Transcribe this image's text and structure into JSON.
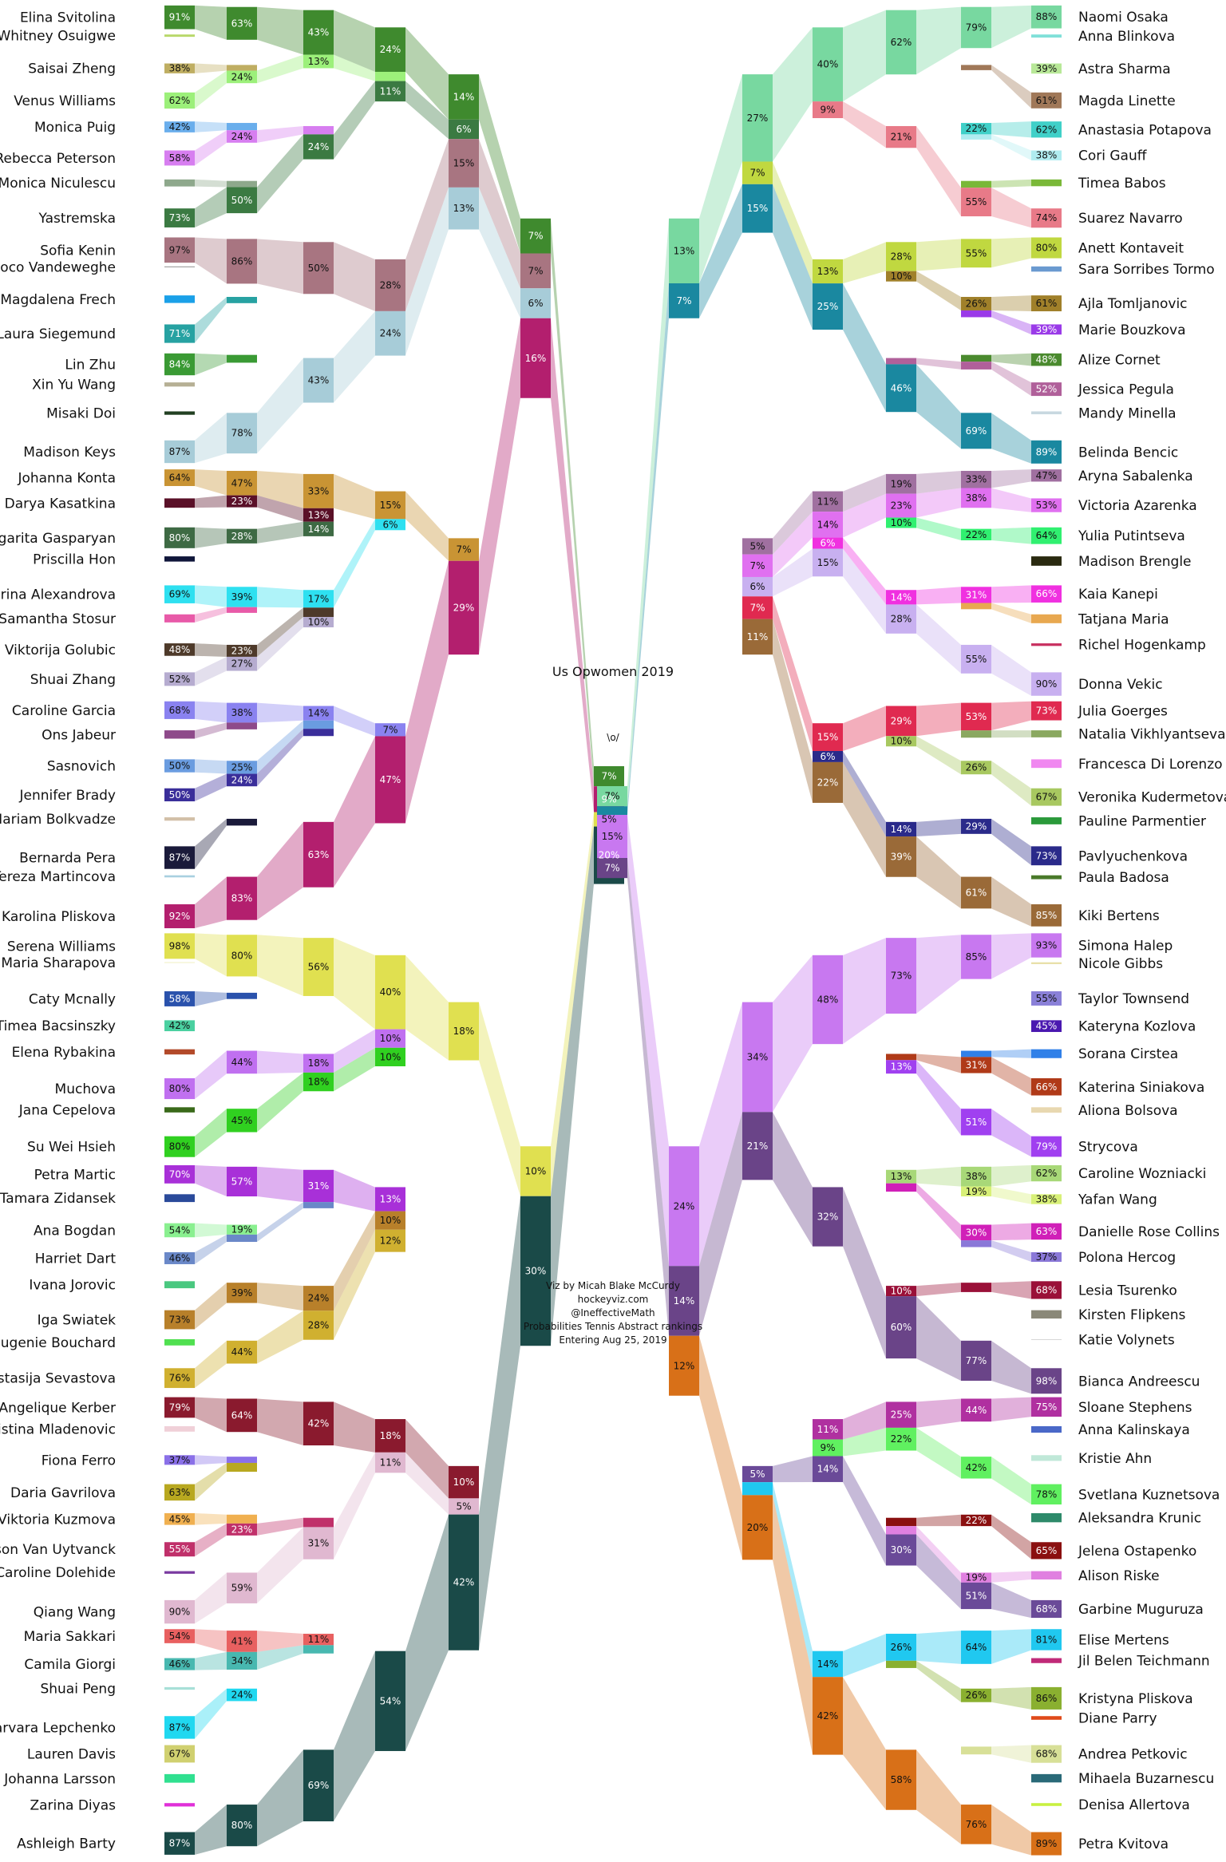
{
  "chart_data": {
    "type": "sankey",
    "title": "Us Opwomen 2019",
    "champion_label": "\\o/",
    "credits": [
      "Viz by Micah Blake McCurdy",
      "hockeyviz.com",
      "@IneffectiveMath",
      "Probabilities Tennis Abstract rankings",
      "Entering Aug 25, 2019"
    ],
    "rounds_shown_as_percent_of_reaching_next_round": true,
    "left_half": [
      {
        "name": "Elina Svitolina",
        "color": "#3f8a2e",
        "r1": 91,
        "r2": 63,
        "r3": 43,
        "r4": 24,
        "qf": 14,
        "sf": 7,
        "final": 7
      },
      {
        "name": "Whitney Osuigwe",
        "color": "#b8d86a",
        "r1": 9
      },
      {
        "name": "Saisai Zheng",
        "color": "#bfae62",
        "r1": 38,
        "r2": 11
      },
      {
        "name": "Venus Williams",
        "color": "#9cf07a",
        "r1": 62,
        "r2": 24,
        "r3": 13,
        "r4": 5
      },
      {
        "name": "Monica Puig",
        "color": "#6aaeec",
        "r1": 42,
        "r2": 14
      },
      {
        "name": "Rebecca Peterson",
        "color": "#d77ef0",
        "r1": 58,
        "r2": 24,
        "r3": 8
      },
      {
        "name": "Monica Niculescu",
        "color": "#8ea88c",
        "r1": 27,
        "r2": 12
      },
      {
        "name": "Yastremska",
        "color": "#3b7a42",
        "r1": 73,
        "r2": 50,
        "r3": 24,
        "r4": 11,
        "qf": 6
      },
      {
        "name": "Sofia Kenin",
        "color": "#a87581",
        "r1": 97,
        "r2": 86,
        "r3": 50,
        "r4": 28,
        "qf": 15,
        "sf": 7
      },
      {
        "name": "Coco Vandeweghe",
        "color": "#8e8e8e",
        "r1": 3
      },
      {
        "name": "Magdalena Frech",
        "color": "#1aa0e8",
        "r1": 29
      },
      {
        "name": "Laura Siegemund",
        "color": "#27a2a2",
        "r1": 71,
        "r2": 12
      },
      {
        "name": "Lin Zhu",
        "color": "#3a9a34",
        "r1": 84,
        "r2": 15
      },
      {
        "name": "Xin Yu Wang",
        "color": "#b6b094",
        "r1": 16
      },
      {
        "name": "Misaki Doi",
        "color": "#224022",
        "r1": 13
      },
      {
        "name": "Madison Keys",
        "color": "#a7ccd8",
        "r1": 87,
        "r2": 78,
        "r3": 43,
        "r4": 24,
        "qf": 13,
        "sf": 6
      },
      {
        "name": "Johanna Konta",
        "color": "#c99434",
        "r1": 64,
        "r2": 47,
        "r3": 33,
        "r4": 15,
        "qf": 7
      },
      {
        "name": "Darya Kasatkina",
        "color": "#5a1028",
        "r1": 36,
        "r2": 23,
        "r3": 13
      },
      {
        "name": "Margarita Gasparyan",
        "color": "#3e6a44",
        "r1": 80,
        "r2": 28,
        "r3": 14
      },
      {
        "name": "Priscilla Hon",
        "color": "#10163a",
        "r1": 20
      },
      {
        "name": "Ekaterina Alexandrova",
        "color": "#2ee0f0",
        "r1": 69,
        "r2": 39,
        "r3": 17,
        "r4": 6
      },
      {
        "name": "Samantha Stosur",
        "color": "#e85aa8",
        "r1": 31,
        "r2": 11
      },
      {
        "name": "Viktorija Golubic",
        "color": "#4e3a2a",
        "r1": 48,
        "r2": 23,
        "r3": 9
      },
      {
        "name": "Shuai Zhang",
        "color": "#b6acd0",
        "r1": 52,
        "r2": 27,
        "r3": 10
      },
      {
        "name": "Caroline Garcia",
        "color": "#8a82f0",
        "r1": 68,
        "r2": 38,
        "r3": 14,
        "r4": 7
      },
      {
        "name": "Ons Jabeur",
        "color": "#8e4a8a",
        "r1": 32,
        "r2": 13
      },
      {
        "name": "Sasnovich",
        "color": "#6a9ce0",
        "r1": 50,
        "r2": 25,
        "r3": 8
      },
      {
        "name": "Jennifer Brady",
        "color": "#3a2e9a",
        "r1": 50,
        "r2": 24,
        "r3": 7
      },
      {
        "name": "Mariam Bolkvadze",
        "color": "#d2c0a8",
        "r1": 13
      },
      {
        "name": "Bernarda Pera",
        "color": "#1a1a3a",
        "r1": 87,
        "r2": 13
      },
      {
        "name": "Tereza Martincova",
        "color": "#a8d0e0",
        "r1": 8
      },
      {
        "name": "Karolina Pliskova",
        "color": "#b31f6e",
        "r1": 92,
        "r2": 83,
        "r3": 63,
        "r4": 47,
        "qf": 29,
        "sf": 16,
        "final": 9
      },
      {
        "name": "Serena Williams",
        "color": "#e0e050",
        "r1": 98,
        "r2": 80,
        "r3": 56,
        "r4": 40,
        "qf": 18,
        "sf": 10,
        "final": 5
      },
      {
        "name": "Maria Sharapova",
        "color": "#e8e8a0",
        "r1": 2
      },
      {
        "name": "Caty Mcnally",
        "color": "#2a52ac",
        "r1": 58,
        "r2": 12
      },
      {
        "name": "Timea Bacsinszky",
        "color": "#4ad0a0",
        "r1": 42
      },
      {
        "name": "Elena Rybakina",
        "color": "#b34a2a",
        "r1": 20
      },
      {
        "name": "Muchova",
        "color": "#c070f0",
        "r1": 80,
        "r2": 44,
        "r3": 18,
        "r4": 10
      },
      {
        "name": "Jana Cepelova",
        "color": "#3a6a1a",
        "r1": 20
      },
      {
        "name": "Su Wei Hsieh",
        "color": "#30d020",
        "r1": 80,
        "r2": 45,
        "r3": 18,
        "r4": 10
      },
      {
        "name": "Petra Martic",
        "color": "#a830d8",
        "r1": 70,
        "r2": 57,
        "r3": 31,
        "r4": 13
      },
      {
        "name": "Tamara Zidansek",
        "color": "#2a4a9a",
        "r1": 30
      },
      {
        "name": "Ana Bogdan",
        "color": "#8af090",
        "r1": 54,
        "r2": 19
      },
      {
        "name": "Harriet Dart",
        "color": "#6a88c8",
        "r1": 46,
        "r2": 14,
        "r3": 6
      },
      {
        "name": "Ivana Jorovic",
        "color": "#4ac880",
        "r1": 27
      },
      {
        "name": "Iga Swiatek",
        "color": "#b8802a",
        "r1": 73,
        "r2": 39,
        "r3": 24,
        "r4": 10
      },
      {
        "name": "Eugenie Bouchard",
        "color": "#50e050",
        "r1": 24
      },
      {
        "name": "Anastasija Sevastova",
        "color": "#d0b030",
        "r1": 76,
        "r2": 44,
        "r3": 28,
        "r4": 12
      },
      {
        "name": "Angelique Kerber",
        "color": "#8a1a2e",
        "r1": 79,
        "r2": 64,
        "r3": 42,
        "r4": 18,
        "qf": 10
      },
      {
        "name": "Kristina Mladenovic",
        "color": "#f0d0d8",
        "r1": 21
      },
      {
        "name": "Fiona Ferro",
        "color": "#8a70e8",
        "r1": 37,
        "r2": 12
      },
      {
        "name": "Daria Gavrilova",
        "color": "#b8a820",
        "r1": 63,
        "r2": 17
      },
      {
        "name": "Viktoria Kuzmova",
        "color": "#f0b050",
        "r1": 45,
        "r2": 17
      },
      {
        "name": "Alison Van Uytvanck",
        "color": "#c0306a",
        "r1": 55,
        "r2": 23,
        "r3": 9
      },
      {
        "name": "Caroline Dolehide",
        "color": "#7a3aa0",
        "r1": 10
      },
      {
        "name": "Qiang Wang",
        "color": "#e0b8d0",
        "r1": 90,
        "r2": 59,
        "r3": 31,
        "r4": 11,
        "qf": 5
      },
      {
        "name": "Maria Sakkari",
        "color": "#e86060",
        "r1": 54,
        "r2": 41,
        "r3": 11
      },
      {
        "name": "Camila Giorgi",
        "color": "#48b8b0",
        "r1": 46,
        "r2": 34,
        "r3": 8
      },
      {
        "name": "Shuai Peng",
        "color": "#a8e0d8",
        "r1": 10
      },
      {
        "name": "Varvara Lepchenko",
        "color": "#20d8f0",
        "r1": 87,
        "r2": 24
      },
      {
        "name": "Lauren Davis",
        "color": "#d0d070",
        "r1": 67
      },
      {
        "name": "Johanna Larsson",
        "color": "#30e090",
        "r1": 33
      },
      {
        "name": "Zarina Diyas",
        "color": "#e030d8",
        "r1": 13
      },
      {
        "name": "Ashleigh Barty",
        "color": "#1a4a48",
        "r1": 87,
        "r2": 80,
        "r3": 69,
        "r4": 54,
        "qf": 42,
        "sf": 30,
        "final": 20
      }
    ],
    "right_half": [
      {
        "name": "Naomi Osaka",
        "color": "#78d8a0",
        "r1": 88,
        "r2": 79,
        "r3": 62,
        "r4": 40,
        "qf": 27,
        "sf": 13,
        "final": 7
      },
      {
        "name": "Anna Blinkova",
        "color": "#80e0d8",
        "r1": 12
      },
      {
        "name": "Astra Sharma",
        "color": "#b8e898",
        "r1": 39
      },
      {
        "name": "Magda Linette",
        "color": "#a07858",
        "r1": 61,
        "r2": 10
      },
      {
        "name": "Anastasia Potapova",
        "color": "#40d0c8",
        "r1": 62,
        "r2": 22
      },
      {
        "name": "Cori Gauff",
        "color": "#b0ecf0",
        "r1": 38,
        "r2": 10
      },
      {
        "name": "Timea Babos",
        "color": "#7ab838",
        "r1": 26,
        "r2": 13
      },
      {
        "name": "Suarez Navarro",
        "color": "#e87a88",
        "r1": 74,
        "r2": 55,
        "r3": 21,
        "r4": 9
      },
      {
        "name": "Anett Kontaveit",
        "color": "#c0d840",
        "r1": 80,
        "r2": 55,
        "r3": 28,
        "r4": 13,
        "qf": 7
      },
      {
        "name": "Sara Sorribes Tormo",
        "color": "#6a9ad0",
        "r1": 20
      },
      {
        "name": "Ajla Tomljanovic",
        "color": "#a0802a",
        "r1": 61,
        "r2": 26,
        "r3": 10
      },
      {
        "name": "Marie Bouzkova",
        "color": "#9a3ae8",
        "r1": 39,
        "r2": 13
      },
      {
        "name": "Alize Cornet",
        "color": "#4a8a2e",
        "r1": 48,
        "r2": 13
      },
      {
        "name": "Jessica Pegula",
        "color": "#b0609a",
        "r1": 52,
        "r2": 15,
        "r3": 6
      },
      {
        "name": "Mandy Minella",
        "color": "#c8d8e0",
        "r1": 11
      },
      {
        "name": "Belinda Bencic",
        "color": "#1a88a0",
        "r1": 89,
        "r2": 69,
        "r3": 46,
        "r4": 25,
        "qf": 15,
        "sf": 7,
        "final": 3
      },
      {
        "name": "Aryna Sabalenka",
        "color": "#a070a0",
        "r1": 47,
        "r2": 33,
        "r3": 19,
        "r4": 11,
        "qf": 5
      },
      {
        "name": "Victoria Azarenka",
        "color": "#e070f0",
        "r1": 53,
        "r2": 38,
        "r3": 23,
        "r4": 14,
        "qf": 7
      },
      {
        "name": "Yulia Putintseva",
        "color": "#30f070",
        "r1": 64,
        "r2": 22,
        "r3": 10
      },
      {
        "name": "Madison Brengle",
        "color": "#2a2a10",
        "r1": 36
      },
      {
        "name": "Kaia Kanepi",
        "color": "#f030e0",
        "r1": 66,
        "r2": 31,
        "r3": 14,
        "r4": 6
      },
      {
        "name": "Tatjana Maria",
        "color": "#e8a850",
        "r1": 34,
        "r2": 12
      },
      {
        "name": "Richel Hogenkamp",
        "color": "#c83060",
        "r1": 10
      },
      {
        "name": "Donna Vekic",
        "color": "#c8b0f0",
        "r1": 90,
        "r2": 55,
        "r3": 28,
        "r4": 15,
        "qf": 6
      },
      {
        "name": "Julia Goerges",
        "color": "#e02a50",
        "r1": 73,
        "r2": 53,
        "r3": 29,
        "r4": 15,
        "qf": 7
      },
      {
        "name": "Natalia Vikhlyantseva",
        "color": "#8aa860",
        "r1": 27,
        "r2": 14
      },
      {
        "name": "Francesca Di Lorenzo",
        "color": "#f088f0",
        "r1": 33
      },
      {
        "name": "Veronika Kudermetova",
        "color": "#a8c860",
        "r1": 67,
        "r2": 26,
        "r3": 10
      },
      {
        "name": "Pauline Parmentier",
        "color": "#2a9a3a",
        "r1": 27
      },
      {
        "name": "Pavlyuchenkova",
        "color": "#2a2a8a",
        "r1": 73,
        "r2": 29,
        "r3": 14,
        "r4": 6
      },
      {
        "name": "Paula Badosa",
        "color": "#4a7a2a",
        "r1": 15
      },
      {
        "name": "Kiki Bertens",
        "color": "#9a6a38",
        "r1": 85,
        "r2": 61,
        "r3": 39,
        "r4": 22,
        "qf": 11
      },
      {
        "name": "Simona Halep",
        "color": "#c878f0",
        "r1": 93,
        "r2": 85,
        "r3": 73,
        "r4": 48,
        "qf": 34,
        "sf": 24,
        "final": 15
      },
      {
        "name": "Nicole Gibbs",
        "color": "#e8e0a8",
        "r1": 7
      },
      {
        "name": "Taylor Townsend",
        "color": "#8a80d8",
        "r1": 55
      },
      {
        "name": "Kateryna Kozlova",
        "color": "#4a18b0",
        "r1": 45
      },
      {
        "name": "Sorana Cirstea",
        "color": "#3080e8",
        "r1": 34,
        "r2": 12
      },
      {
        "name": "Katerina Siniakova",
        "color": "#b03a18",
        "r1": 66,
        "r2": 31,
        "r3": 6
      },
      {
        "name": "Aliona Bolsova",
        "color": "#e8d8b0",
        "r1": 21
      },
      {
        "name": "Strycova",
        "color": "#a040f0",
        "r1": 79,
        "r2": 51,
        "r3": 13
      },
      {
        "name": "Caroline Wozniacki",
        "color": "#a8d878",
        "r1": 62,
        "r2": 38,
        "r3": 13
      },
      {
        "name": "Yafan Wang",
        "color": "#d8f078",
        "r1": 38,
        "r2": 19
      },
      {
        "name": "Danielle Rose Collins",
        "color": "#d020b8",
        "r1": 63,
        "r2": 30,
        "r3": 8
      },
      {
        "name": "Polona Hercog",
        "color": "#8a78d8",
        "r1": 37,
        "r2": 13
      },
      {
        "name": "Lesia Tsurenko",
        "color": "#9a1038",
        "r1": 68,
        "r2": 18,
        "r3": 10
      },
      {
        "name": "Kirsten Flipkens",
        "color": "#8a8878",
        "r1": 32
      },
      {
        "name": "Katie Volynets",
        "color": "#c0c0c0",
        "r1": 2
      },
      {
        "name": "Bianca Andreescu",
        "color": "#6a4488",
        "r1": 98,
        "r2": 77,
        "r3": 60,
        "r4": 32,
        "qf": 21,
        "sf": 14,
        "final": 7
      },
      {
        "name": "Sloane Stephens",
        "color": "#b030a0",
        "r1": 75,
        "r2": 44,
        "r3": 25,
        "r4": 11
      },
      {
        "name": "Anna Kalinskaya",
        "color": "#4a68c8",
        "r1": 25
      },
      {
        "name": "Kristie Ahn",
        "color": "#c0e8d8",
        "r1": 22
      },
      {
        "name": "Svetlana Kuznetsova",
        "color": "#60f060",
        "r1": 78,
        "r2": 42,
        "r3": 22,
        "r4": 9
      },
      {
        "name": "Aleksandra Krunic",
        "color": "#2e8a6a",
        "r1": 35
      },
      {
        "name": "Jelena Ostapenko",
        "color": "#8a1010",
        "r1": 65,
        "r2": 22,
        "r3": 8
      },
      {
        "name": "Alison Riske",
        "color": "#e080e0",
        "r1": 32,
        "r2": 19,
        "r3": 8
      },
      {
        "name": "Garbine Muguruza",
        "color": "#6a4a98",
        "r1": 68,
        "r2": 51,
        "r3": 30,
        "r4": 14,
        "qf": 5
      },
      {
        "name": "Elise Mertens",
        "color": "#20c8f0",
        "r1": 81,
        "r2": 64,
        "r3": 26,
        "r4": 14,
        "qf": 4
      },
      {
        "name": "Jil Belen Teichmann",
        "color": "#c02a78",
        "r1": 19
      },
      {
        "name": "Kristyna Pliskova",
        "color": "#8ab030",
        "r1": 86,
        "r2": 26,
        "r3": 7
      },
      {
        "name": "Diane Parry",
        "color": "#e04a1a",
        "r1": 14
      },
      {
        "name": "Andrea Petkovic",
        "color": "#d8e098",
        "r1": 68,
        "r2": 15
      },
      {
        "name": "Mihaela Buzarnescu",
        "color": "#2a6a78",
        "r1": 32
      },
      {
        "name": "Denisa Allertova",
        "color": "#c8f040",
        "r1": 11
      },
      {
        "name": "Petra Kvitova",
        "color": "#d87018",
        "r1": 89,
        "r2": 76,
        "r3": 58,
        "r4": 42,
        "qf": 20,
        "sf": 12
      }
    ]
  }
}
